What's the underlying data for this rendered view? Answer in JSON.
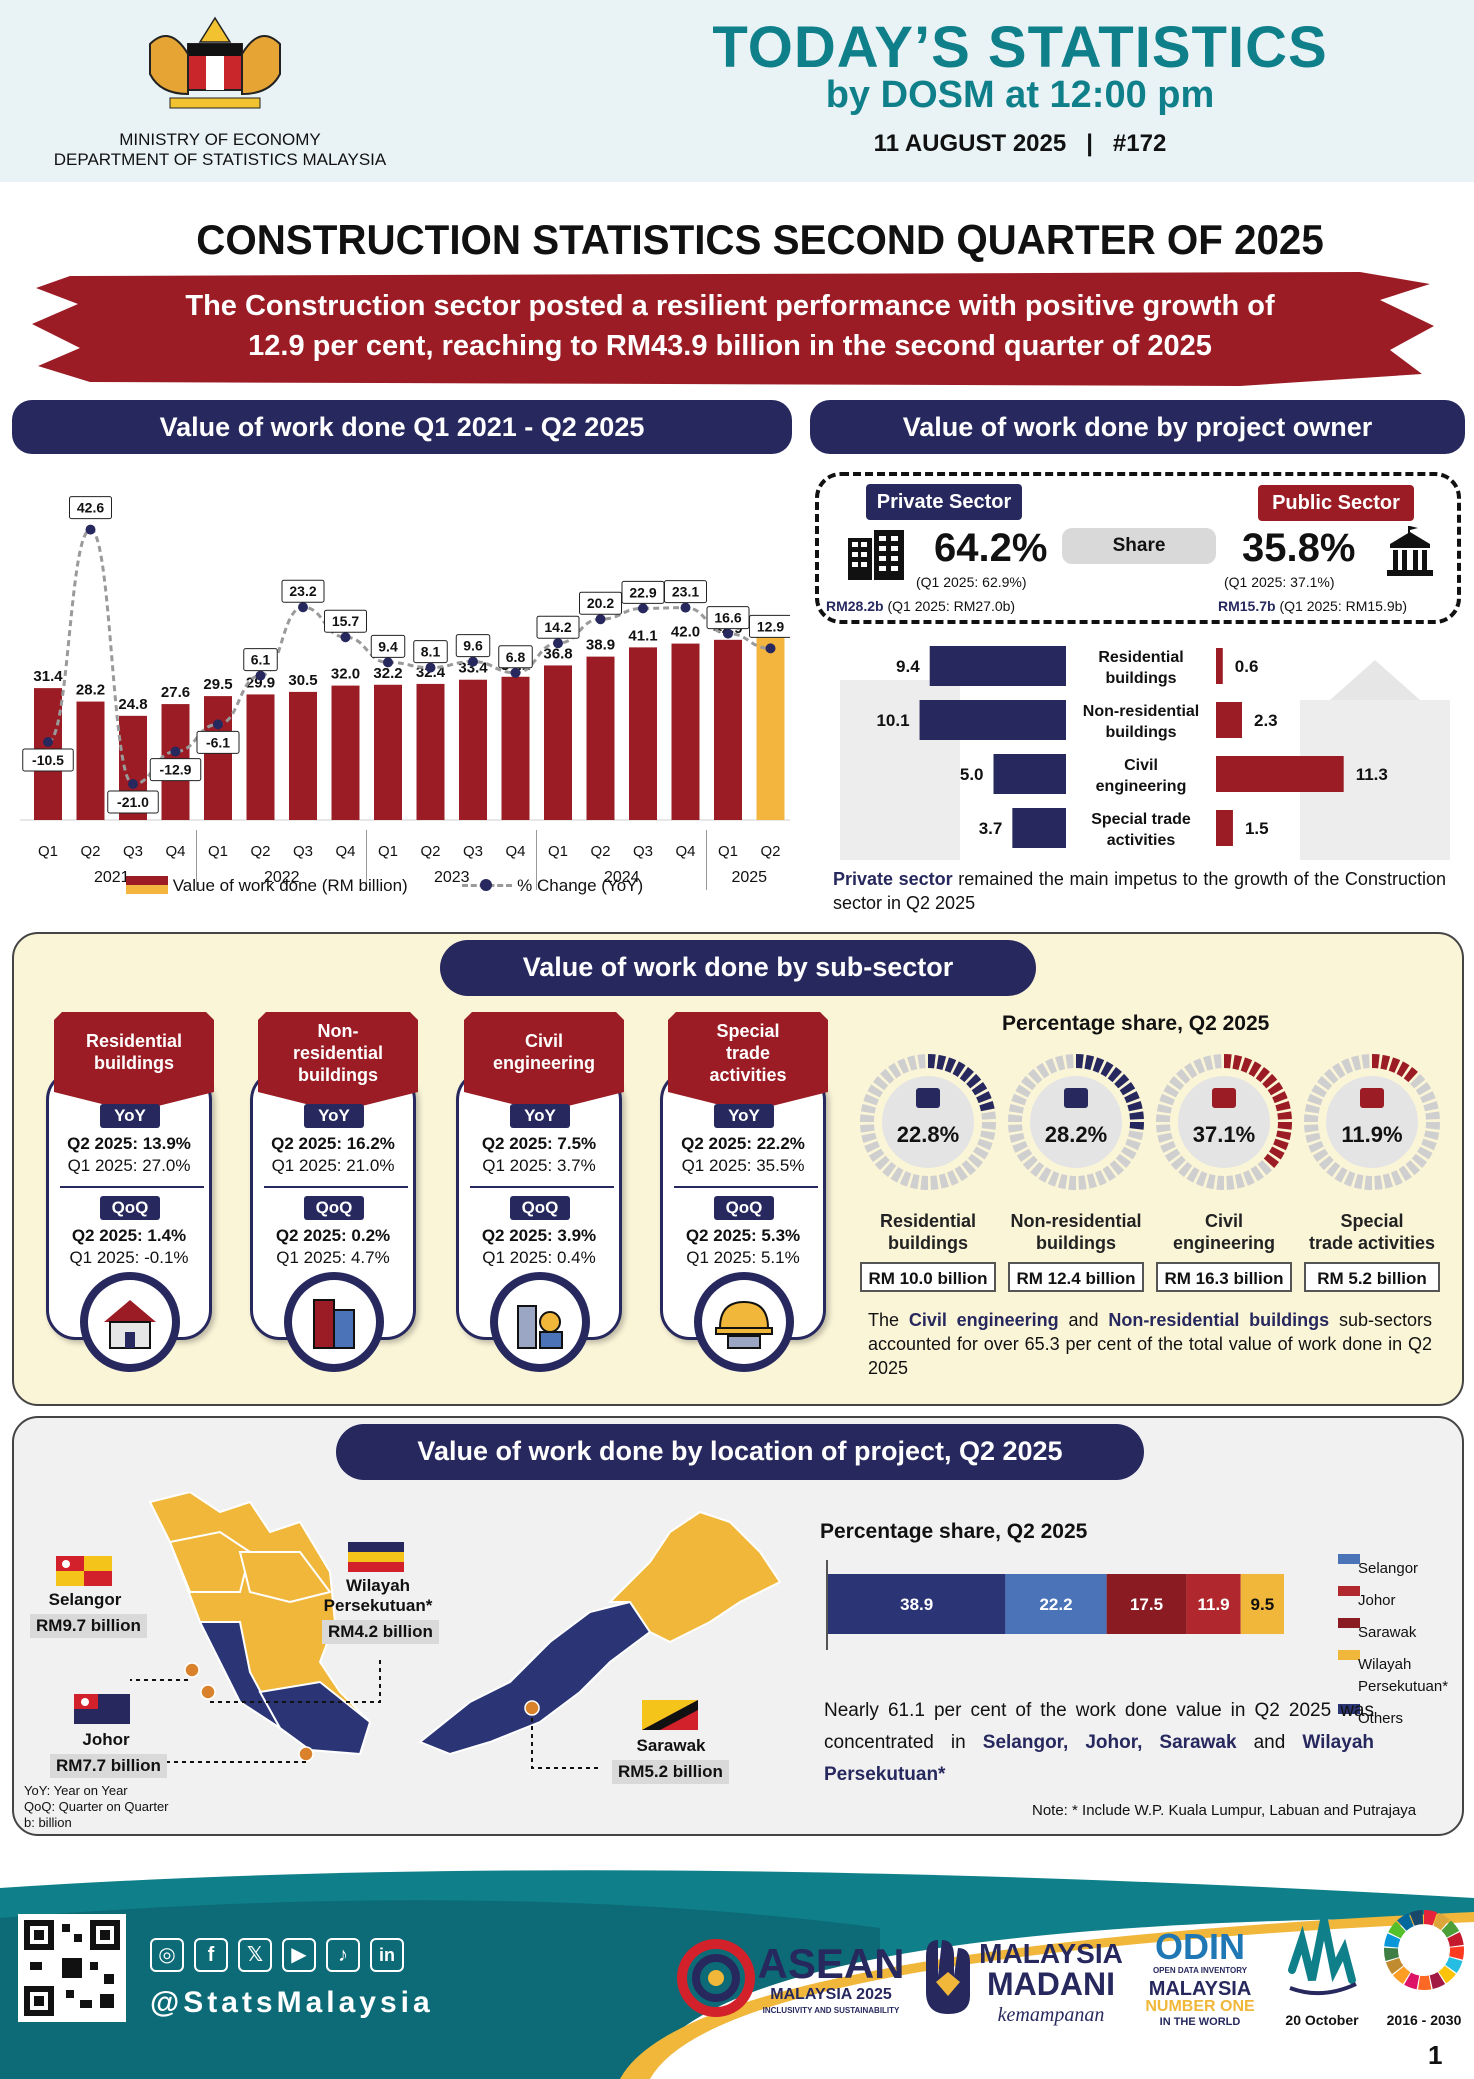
{
  "header": {
    "ministry_line1": "MINISTRY OF ECONOMY",
    "ministry_line2": "DEPARTMENT OF STATISTICS MALAYSIA",
    "title": "TODAY’S STATISTICS",
    "subtitle": "by DOSM at 12:00 pm",
    "issue": "11 AUGUST 2025   |   #172"
  },
  "main_title": "CONSTRUCTION STATISTICS SECOND QUARTER OF 2025",
  "banner_line1": "The Construction sector posted a resilient performance with positive growth of",
  "banner_line2": "12.9 per cent, reaching to RM43.9 billion in the second quarter of 2025",
  "panels": {
    "work_done_title": "Value of work done Q1 2021 - Q2 2025",
    "owner_title": "Value of work done by project owner",
    "subsector_title": "Value of work done by sub-sector",
    "location_title": "Value of work done by location of project, Q2 2025"
  },
  "chart_data": [
    {
      "type": "bar",
      "title": "Value of work done Q1 2021 - Q2 2025",
      "categories": [
        "Q1",
        "Q2",
        "Q3",
        "Q4",
        "Q1",
        "Q2",
        "Q3",
        "Q4",
        "Q1",
        "Q2",
        "Q3",
        "Q4",
        "Q1",
        "Q2",
        "Q3",
        "Q4",
        "Q1",
        "Q2"
      ],
      "years": [
        {
          "label": "2021",
          "start": 0,
          "end": 3
        },
        {
          "label": "2022",
          "start": 4,
          "end": 7
        },
        {
          "label": "2023",
          "start": 8,
          "end": 11
        },
        {
          "label": "2024",
          "start": 12,
          "end": 15
        },
        {
          "label": "2025",
          "start": 16,
          "end": 17
        }
      ],
      "series": [
        {
          "name": "Value of work done (RM billion)",
          "type": "bar",
          "values": [
            31.4,
            28.2,
            24.8,
            27.6,
            29.5,
            29.9,
            30.5,
            32.0,
            32.2,
            32.4,
            33.4,
            34.1,
            36.8,
            38.9,
            41.1,
            42.0,
            42.9,
            43.9
          ]
        },
        {
          "name": "% Change (YoY)",
          "type": "line",
          "values": [
            -10.5,
            42.6,
            -21.0,
            -12.9,
            -6.1,
            6.1,
            23.2,
            15.7,
            9.4,
            8.1,
            9.6,
            6.8,
            14.2,
            20.2,
            22.9,
            23.1,
            16.6,
            12.9
          ]
        }
      ],
      "legend": [
        "Value of work done (RM billion)",
        "% Change (YoY)"
      ],
      "colors": {
        "bar": "#9b1c24",
        "highlight": "#f4b53f",
        "line": "#9a9a9a",
        "dot": "#26285e"
      }
    },
    {
      "type": "bar",
      "title": "Value of work done by project owner",
      "categories": [
        "Residential buildings",
        "Non-residential buildings",
        "Civil engineering",
        "Special trade activities"
      ],
      "series": [
        {
          "name": "Private Sector",
          "values": [
            9.4,
            10.1,
            5.0,
            3.7
          ]
        },
        {
          "name": "Public Sector",
          "values": [
            0.6,
            2.3,
            11.3,
            1.5
          ]
        }
      ]
    },
    {
      "type": "pie",
      "title": "Percentage share, Q2 2025",
      "categories": [
        "Residential buildings",
        "Non-residential buildings",
        "Civil engineering",
        "Special trade activities"
      ],
      "values": [
        22.8,
        28.2,
        37.1,
        11.9
      ],
      "amounts": [
        "RM 10.0 billion",
        "RM 12.4 billion",
        "RM 16.3 billion",
        "RM 5.2 billion"
      ]
    },
    {
      "type": "bar",
      "title": "Percentage share, Q2 2025",
      "categories": [
        "Selangor",
        "Johor",
        "Sarawak",
        "Wilayah Persekutuan*",
        "Others"
      ],
      "segments": [
        {
          "label": "38.9",
          "value": 38.9,
          "color": "#2b3576"
        },
        {
          "label": "22.2",
          "value": 22.2,
          "color": "#4a73b8"
        },
        {
          "label": "17.5",
          "value": 17.5,
          "color": "#8b1b22"
        },
        {
          "label": "11.9",
          "value": 11.9,
          "color": "#b0272d"
        },
        {
          "label": "9.5",
          "value": 9.5,
          "color": "#f0b73a"
        }
      ],
      "legend": [
        {
          "label": "Selangor",
          "color": "#4a73b8"
        },
        {
          "label": "Johor",
          "color": "#b0272d"
        },
        {
          "label": "Sarawak",
          "color": "#8b1b22"
        },
        {
          "label": "Wilayah Persekutuan*",
          "color": "#f0b73a"
        },
        {
          "label": "Others",
          "color": "#2b3576"
        }
      ]
    }
  ],
  "owner": {
    "private_tag": "Private Sector",
    "public_tag": "Public Sector",
    "share_label": "Share",
    "private_pct": "64.2%",
    "private_prev": "(Q1 2025: 62.9%)",
    "private_rm": "RM28.2b",
    "private_rm_prev": "(Q1 2025: RM27.0b)",
    "public_pct": "35.8%",
    "public_prev": "(Q1 2025: 37.1%)",
    "public_rm": "RM15.7b",
    "public_rm_prev": "(Q1 2025: RM15.9b)",
    "cat_labels": [
      [
        "Residential",
        "buildings"
      ],
      [
        "Non-residential",
        "buildings"
      ],
      [
        "Civil",
        "engineering"
      ],
      [
        "Special trade",
        "activities"
      ]
    ],
    "note_bold": "Private sector",
    "note_rest": " remained the main impetus to the growth of the Construction sector in Q2 2025",
    "colors": {
      "private": "#26285e",
      "public": "#9b1c24"
    }
  },
  "subsector": {
    "cards": [
      {
        "title": [
          "Residential",
          "buildings"
        ],
        "yoy_q2": "Q2 2025: 13.9%",
        "yoy_q1": "Q1 2025: 27.0%",
        "qoq_q2": "Q2 2025: 1.4%",
        "qoq_q1": "Q1 2025: -0.1%"
      },
      {
        "title": [
          "Non-",
          "residential",
          "buildings"
        ],
        "yoy_q2": "Q2 2025: 16.2%",
        "yoy_q1": "Q1 2025: 21.0%",
        "qoq_q2": "Q2 2025: 0.2%",
        "qoq_q1": "Q1 2025: 4.7%"
      },
      {
        "title": [
          "Civil",
          "engineering"
        ],
        "yoy_q2": "Q2 2025: 7.5%",
        "yoy_q1": "Q1 2025: 3.7%",
        "qoq_q2": "Q2 2025: 3.9%",
        "qoq_q1": "Q1 2025: 0.4%"
      },
      {
        "title": [
          "Special",
          "trade",
          "activities"
        ],
        "yoy_q2": "Q2 2025: 22.2%",
        "yoy_q1": "Q1 2025: 35.5%",
        "qoq_q2": "Q2 2025: 5.3%",
        "qoq_q1": "Q1 2025: 5.1%"
      }
    ],
    "yoy_label": "YoY",
    "qoq_label": "QoQ",
    "share_title": "Percentage share, Q2 2025",
    "ring_pcts": [
      "22.8%",
      "28.2%",
      "37.1%",
      "11.9%"
    ],
    "ring_labels": [
      [
        "Residential",
        "buildings"
      ],
      [
        "Non-residential",
        "buildings"
      ],
      [
        "Civil",
        "engineering"
      ],
      [
        "Special",
        "trade activities"
      ]
    ],
    "ring_amounts": [
      "RM 10.0 billion",
      "RM 12.4 billion",
      "RM 16.3 billion",
      "RM 5.2 billion"
    ],
    "note_pre": "The ",
    "note_b1": "Civil engineering",
    "note_mid": " and ",
    "note_b2": "Non-residential buildings",
    "note_post": " sub-sectors accounted for over 65.3 per cent of the total value of work done in Q2 2025"
  },
  "location": {
    "selangor": "Selangor",
    "selangor_val": "RM9.7 billion",
    "wp": "Wilayah\nPersekutuan*",
    "wp_line1": "Wilayah",
    "wp_line2": "Persekutuan*",
    "wp_val": "RM4.2 billion",
    "johor": "Johor",
    "johor_val": "RM7.7 billion",
    "sarawak": "Sarawak",
    "sarawak_val": "RM5.2 billion",
    "abbrev": [
      "YoY: Year on Year",
      "QoQ: Quarter on Quarter",
      "b: billion"
    ],
    "share_title": "Percentage share, Q2 2025",
    "note_pre": "Nearly 61.1 per cent of the work done value in Q2 2025 was concentrated in ",
    "note_bold": "Selangor, Johor, Sarawak",
    "note_mid": " and ",
    "note_bold2": "Wilayah Persekutuan*",
    "footnote": "Note: * Include W.P. Kuala Lumpur, Labuan and Putrajaya"
  },
  "footer": {
    "handle": "@StatsMalaysia",
    "social_icons": [
      "instagram-icon",
      "facebook-icon",
      "x-icon",
      "youtube-icon",
      "tiktok-icon",
      "linkedin-icon"
    ],
    "asean_line1": "ASEAN",
    "asean_line2": "MALAYSIA 2025",
    "asean_line3": "INCLUSIVITY AND SUSTAINABILITY",
    "madani_line1": "MALAYSIA",
    "madani_line2": "MADANI",
    "madani_line3": "kemampanan",
    "odin_line1": "ODIN",
    "odin_line2": "OPEN DATA INVENTORY",
    "odin_line3": "MALAYSIA",
    "odin_line4": "NUMBER ONE",
    "odin_line5": "IN THE WORLD",
    "stats_day": "20 October",
    "sdg_years": "2016 - 2030",
    "page": "1"
  }
}
